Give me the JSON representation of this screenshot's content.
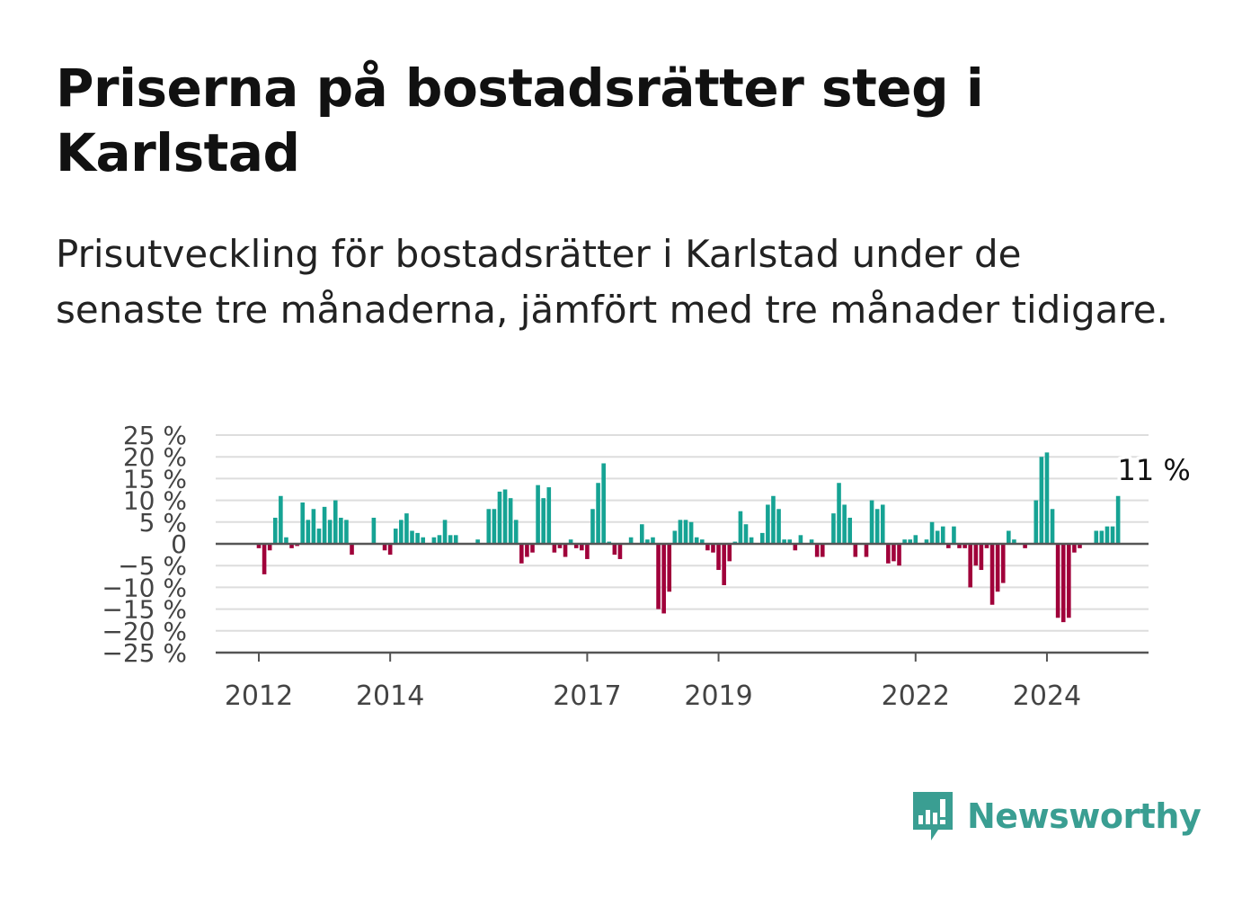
{
  "title": "Priserna på bostadsrätter steg i Karlstad",
  "subtitle": "Prisutveckling för bostadsrätter i Karlstad under de senaste tre månaderna, jämfört med tre månader tidigare.",
  "brand": {
    "name": "Newsworthy",
    "color": "#3a9e92",
    "icon": "newsworthy-logo-icon"
  },
  "chart_data": {
    "type": "bar",
    "annotation": "11 %",
    "ylim": [
      -25,
      25
    ],
    "ticks_y": [
      {
        "value": 25,
        "label": "25 %"
      },
      {
        "value": 20,
        "label": "20 %"
      },
      {
        "value": 15,
        "label": "15 %"
      },
      {
        "value": 10,
        "label": "10 %"
      },
      {
        "value": 5,
        "label": "5 %"
      },
      {
        "value": 0,
        "label": "0"
      },
      {
        "value": -5,
        "label": "−5 %"
      },
      {
        "value": -10,
        "label": "−10 %"
      },
      {
        "value": -15,
        "label": "−15 %"
      },
      {
        "value": -20,
        "label": "−20 %"
      },
      {
        "value": -25,
        "label": "−25 %"
      }
    ],
    "ticks_x": [
      "2012",
      "2014",
      "2017",
      "2019",
      "2022",
      "2024"
    ],
    "start_month": "2011-06",
    "colors": {
      "positive": "#16a394",
      "negative": "#a0003a",
      "grid": "#dddddd",
      "axis": "#555555"
    },
    "values": [
      0,
      0,
      0,
      0,
      0,
      0,
      0,
      -1,
      -7,
      -1.5,
      6,
      11,
      1.5,
      -1,
      -0.5,
      9.5,
      5.5,
      8,
      3.5,
      8.5,
      5.5,
      10,
      6,
      5.5,
      -2.5,
      0,
      0,
      0,
      6,
      0,
      -1.5,
      -2.5,
      3.5,
      5.5,
      7,
      3,
      2.5,
      1.5,
      0,
      1.5,
      2,
      5.5,
      2,
      2,
      0,
      0,
      0,
      1,
      0,
      8,
      8,
      12,
      12.5,
      10.5,
      5.5,
      -4.5,
      -3,
      -2,
      13.5,
      10.5,
      13,
      -2,
      -1,
      -3,
      1,
      -1,
      -1.5,
      -3.5,
      8,
      14,
      18.5,
      0.5,
      -2.5,
      -3.5,
      0,
      1.5,
      0,
      4.5,
      1,
      1.5,
      -15,
      -16,
      -11,
      3,
      5.5,
      5.5,
      5,
      1.5,
      1,
      -1.5,
      -2,
      -6,
      -9.5,
      -4,
      0.5,
      7.5,
      4.5,
      1.5,
      0,
      2.5,
      9,
      11,
      8,
      1,
      1,
      -1.5,
      2,
      0,
      1,
      -3,
      -3,
      0,
      7,
      14,
      9,
      6,
      -3,
      0,
      -3,
      10,
      8,
      9,
      -4.5,
      -4,
      -5,
      1,
      1,
      2,
      0,
      1,
      5,
      3,
      4,
      -1,
      4,
      -1,
      -1,
      -10,
      -5,
      -6,
      -1,
      -14,
      -11,
      -9,
      3,
      1,
      0,
      -1,
      0,
      10,
      20,
      21,
      8,
      -17,
      -18,
      -17,
      -2,
      -1,
      0,
      0,
      3,
      3,
      4,
      4,
      11
    ]
  }
}
